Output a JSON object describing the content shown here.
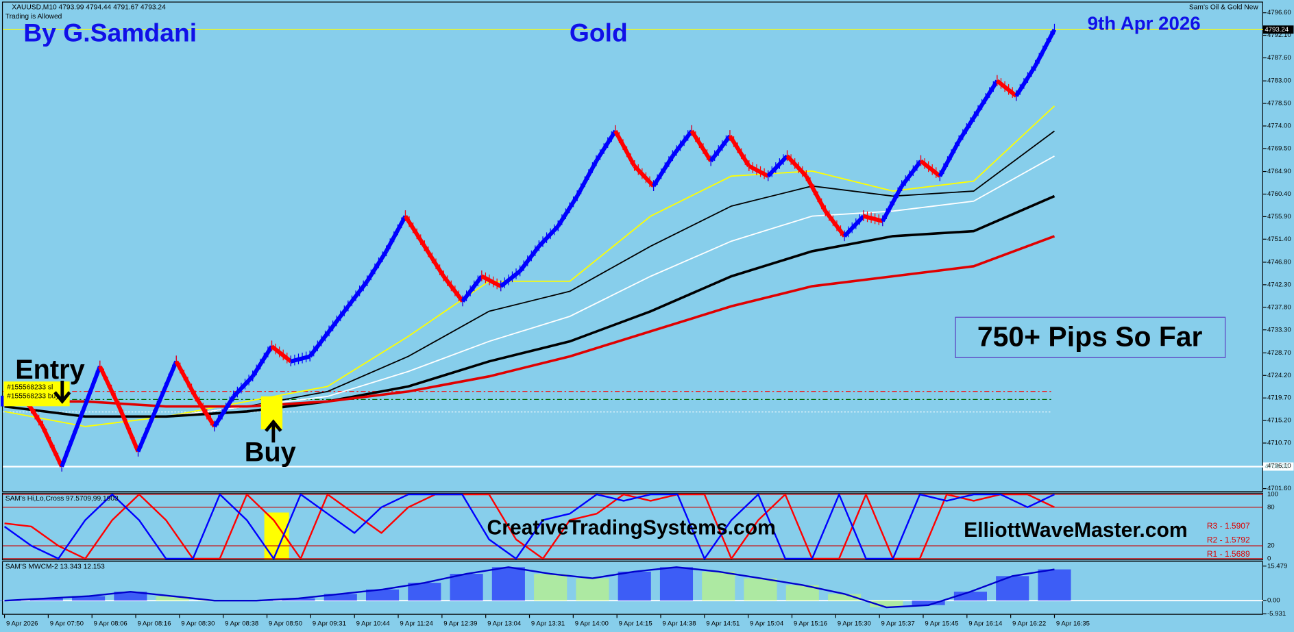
{
  "chart_data": [
    {
      "type": "price",
      "symbol_info": "XAUUSD,M10 4793.99 4794.44 4791.67 4793.24",
      "status": "Trading is Allowed",
      "indicator_name": "Sam's Oil & Gold New",
      "author": "By G.Samdani",
      "title": "Gold",
      "date": "9th Apr 2026",
      "annotation": "750+ Pips So Far",
      "entry_label": "Entry",
      "buy_label": "Buy",
      "order_labels": [
        "#155568233 sl",
        "#155568233 buy"
      ],
      "x_labels": [
        "9 Apr 2026",
        "9 Apr 07:50",
        "9 Apr 08:06",
        "9 Apr 08:16",
        "9 Apr 08:30",
        "9 Apr 08:38",
        "9 Apr 08:50",
        "9 Apr 09:31",
        "9 Apr 10:44",
        "9 Apr 11:24",
        "9 Apr 12:39",
        "9 Apr 13:04",
        "9 Apr 13:31",
        "9 Apr 14:00",
        "9 Apr 14:15",
        "9 Apr 14:38",
        "9 Apr 14:51",
        "9 Apr 15:04",
        "9 Apr 15:16",
        "9 Apr 15:30",
        "9 Apr 15:37",
        "9 Apr 15:45",
        "9 Apr 16:14",
        "9 Apr 16:22",
        "9 Apr 16:35"
      ],
      "ylim": [
        4701.6,
        4796.6
      ],
      "yticks": [
        {
          "value": 4796.6,
          "label": "4796.60"
        },
        {
          "value": 4792.1,
          "label": "4792.10"
        },
        {
          "value": 4787.6,
          "label": "4787.60"
        },
        {
          "value": 4783.0,
          "label": "4783.00"
        },
        {
          "value": 4778.5,
          "label": "4778.50"
        },
        {
          "value": 4774.0,
          "label": "4774.00"
        },
        {
          "value": 4769.5,
          "label": "4769.50"
        },
        {
          "value": 4764.9,
          "label": "4764.90"
        },
        {
          "value": 4760.4,
          "label": "4760.40"
        },
        {
          "value": 4755.9,
          "label": "4755.90"
        },
        {
          "value": 4751.4,
          "label": "4751.40"
        },
        {
          "value": 4746.8,
          "label": "4746.80"
        },
        {
          "value": 4742.3,
          "label": "4742.30"
        },
        {
          "value": 4737.8,
          "label": "4737.80"
        },
        {
          "value": 4733.3,
          "label": "4733.30"
        },
        {
          "value": 4728.7,
          "label": "4728.70"
        },
        {
          "value": 4724.2,
          "label": "4724.20"
        },
        {
          "value": 4719.7,
          "label": "4719.70"
        },
        {
          "value": 4715.2,
          "label": "4715.20"
        },
        {
          "value": 4710.7,
          "label": "4710.70"
        },
        {
          "value": 4706.1,
          "label": "4706.10"
        },
        {
          "value": 4701.6,
          "label": "4701.60"
        }
      ],
      "price": {
        "color_up": "#0000ff",
        "color_down": "#ff0000",
        "values": [
          4719,
          4720,
          4714,
          4706,
          4716,
          4726,
          4718,
          4709,
          4718,
          4727,
          4720,
          4714,
          4720,
          4724,
          4730,
          4727,
          4728,
          4733,
          4738,
          4743,
          4749,
          4756,
          4750,
          4744,
          4739,
          4744,
          4742,
          4745,
          4750,
          4754,
          4760,
          4767,
          4773,
          4766,
          4762,
          4768,
          4773,
          4767,
          4772,
          4766,
          4764,
          4768,
          4764,
          4757,
          4752,
          4756,
          4755,
          4762,
          4767,
          4764,
          4771,
          4777,
          4783,
          4780,
          4786,
          4793.24
        ]
      },
      "series": [
        {
          "color": "#ffff00",
          "width": 1.5,
          "values": [
            4717,
            4714,
            4716,
            4719,
            4722,
            4732,
            4743,
            4743,
            4756,
            4764,
            4765,
            4761,
            4763,
            4778
          ]
        },
        {
          "color": "#000000",
          "width": 1.5,
          "values": [
            4718,
            4716,
            4716,
            4718,
            4721,
            4728,
            4737,
            4741,
            4750,
            4758,
            4762,
            4760,
            4761,
            4773
          ]
        },
        {
          "color": "#ffffff",
          "width": 1.5,
          "values": [
            4718,
            4716,
            4716,
            4718,
            4720,
            4725,
            4731,
            4736,
            4744,
            4751,
            4756,
            4757,
            4759,
            4768
          ]
        },
        {
          "color": "#000000",
          "width": 3,
          "values": [
            4718,
            4716,
            4716,
            4717,
            4719,
            4722,
            4727,
            4731,
            4737,
            4744,
            4749,
            4752,
            4753,
            4760
          ]
        },
        {
          "color": "#e00000",
          "width": 3,
          "values": [
            4719,
            4719,
            4718,
            4718,
            4719,
            4721,
            4724,
            4728,
            4733,
            4738,
            4742,
            4744,
            4746,
            4752
          ]
        }
      ],
      "levels": [
        {
          "value": 4721.0,
          "color": "#ff0000",
          "dash": "6 3 2 3"
        },
        {
          "value": 4719.4,
          "color": "#006600",
          "dash": "6 3 2 3"
        },
        {
          "value": 4716.9,
          "color": "#ffffff",
          "dash": "2 2"
        }
      ],
      "current_price": {
        "value": 4793.24,
        "label": "4793.24",
        "color": "#ffff00"
      },
      "support": {
        "value": 4706.0,
        "label": "4706.00",
        "color": "#ffffff"
      }
    },
    {
      "type": "oscillator",
      "title": "SAM's Hi,Lo,Cross 97.5709,99.1903",
      "ylim": [
        0,
        100
      ],
      "yticks": [
        0,
        20,
        80,
        100
      ],
      "series": [
        {
          "color": "#0000ff",
          "values": [
            50,
            20,
            0,
            60,
            100,
            60,
            0,
            0,
            100,
            60,
            0,
            100,
            70,
            40,
            80,
            100,
            100,
            100,
            30,
            0,
            60,
            70,
            100,
            90,
            100,
            100,
            0,
            60,
            100,
            0,
            0,
            100,
            0,
            0,
            100,
            90,
            100,
            100,
            80,
            100
          ]
        },
        {
          "color": "#ff0000",
          "values": [
            55,
            50,
            20,
            0,
            60,
            100,
            60,
            0,
            0,
            100,
            60,
            0,
            100,
            70,
            40,
            80,
            100,
            100,
            100,
            30,
            0,
            60,
            70,
            100,
            90,
            100,
            100,
            0,
            60,
            100,
            0,
            0,
            100,
            0,
            0,
            100,
            90,
            100,
            100,
            80
          ]
        }
      ],
      "pivot_labels": [
        "R3 - 1.5907",
        "R2 - 1.5792",
        "R1 - 1.5689"
      ],
      "site_1": "CreativeTradingSystems.com",
      "site_2": "ElliottWaveMaster.com"
    },
    {
      "type": "histogram",
      "title": "SAM'S MWCM-2 13.343 12.153",
      "ylim": [
        -5.931,
        15.479
      ],
      "yticks": [
        -5.931,
        {
          "value": 0,
          "label": "0.00"
        },
        15.479
      ],
      "line_color": "#0000cc",
      "rise_color": "#0000ff",
      "fall_color": "#ccff66",
      "values": [
        0,
        1,
        2,
        4,
        2,
        0,
        0,
        1,
        3,
        5,
        8,
        12,
        15,
        12,
        10,
        13,
        15,
        13,
        10,
        7,
        3,
        -3,
        -2,
        4,
        11,
        14
      ]
    }
  ]
}
